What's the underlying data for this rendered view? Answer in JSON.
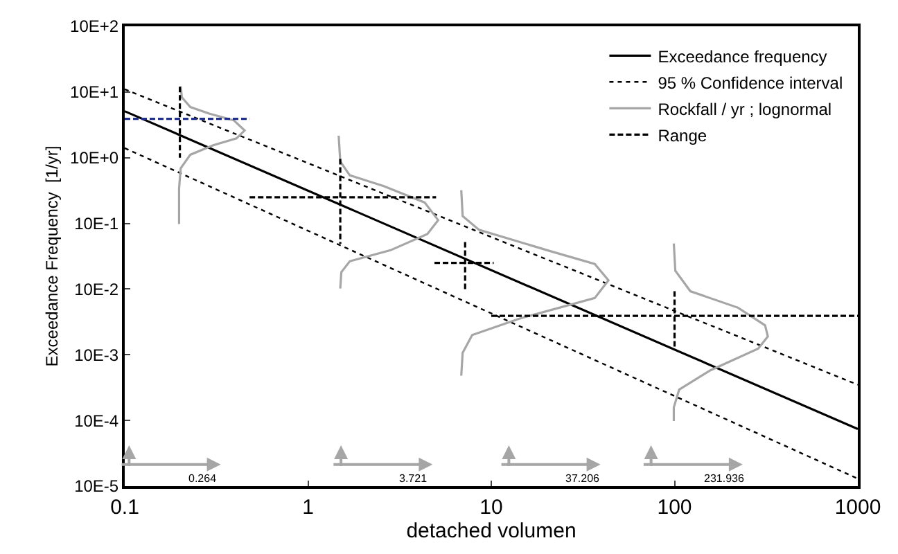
{
  "chart_data": {
    "type": "line",
    "xlabel": "detached volumen",
    "ylabel": "Exceedance Frequency  [1/yr]",
    "log": "xy",
    "xlim": [
      0.1,
      1000
    ],
    "ylim": [
      0.0001,
      1000
    ],
    "xticks": [
      0.1,
      1,
      10,
      100,
      1000
    ],
    "yticks": [
      {
        "value": 0.0001,
        "label": "10E-5"
      },
      {
        "value": 0.001,
        "label": "10E-4"
      },
      {
        "value": 0.01,
        "label": "10E-3"
      },
      {
        "value": 0.1,
        "label": "10E-2"
      },
      {
        "value": 1,
        "label": "10E-1"
      },
      {
        "value": 10,
        "label": "10E+0"
      },
      {
        "value": 100,
        "label": "10E+1"
      },
      {
        "value": 1000,
        "label": "10E+2"
      }
    ],
    "grid": false,
    "legend": "top right",
    "marker": "none",
    "series": [
      {
        "name": "Exceedance frequency",
        "color": "#000000",
        "line_style": "solid",
        "x": [
          0.1,
          1000
        ],
        "values": [
          51,
          0.00074
        ]
      },
      {
        "name": "95 % Confidence interval",
        "color": "#000000",
        "line_style": "dotted",
        "x": [
          0.1,
          1000
        ],
        "values": [
          110,
          0.0035
        ]
      },
      {
        "color": "#000000",
        "line_style": "dotted",
        "x": [
          0.1,
          1000
        ],
        "values": [
          14,
          0.00013
        ]
      },
      {
        "name": "Rockfall / yr ; lognormal",
        "color": "#a6a6a6",
        "line_style": "solid",
        "x": [
          0.202,
          0.205,
          0.228,
          0.289,
          0.394,
          0.451,
          0.407,
          0.304,
          0.228,
          0.202,
          0.198,
          0.198
        ],
        "values": [
          122,
          83,
          59,
          47,
          37,
          26,
          19.7,
          15.5,
          11.1,
          6.9,
          3.4,
          0.98
        ]
      },
      {
        "color": "#a6a6a6",
        "line_style": "solid",
        "x": [
          1.47,
          1.5,
          1.69,
          2.59,
          4.33,
          5.13,
          4.48,
          2.82,
          1.69,
          1.52,
          1.5
        ],
        "values": [
          21.7,
          8.75,
          5.4,
          3.7,
          2.08,
          1.12,
          0.69,
          0.39,
          0.265,
          0.181,
          0.102
        ]
      },
      {
        "color": "#a6a6a6",
        "line_style": "solid",
        "x": [
          6.86,
          6.98,
          8.57,
          20.2,
          36.7,
          43.6,
          36.7,
          14.3,
          7.87,
          6.98,
          6.86
        ],
        "values": [
          3.2,
          1.29,
          0.798,
          0.39,
          0.241,
          0.136,
          0.073,
          0.0356,
          0.02,
          0.0107,
          0.0048
        ]
      },
      {
        "color": "#a6a6a6",
        "line_style": "solid",
        "x": [
          99.1,
          101,
          122,
          222,
          312,
          323,
          286,
          157,
          106,
          99.1,
          99.1
        ],
        "values": [
          0.494,
          0.19,
          0.0927,
          0.052,
          0.028,
          0.019,
          0.0124,
          0.0058,
          0.00295,
          0.00158,
          0.000977
        ]
      },
      {
        "name": "Range",
        "color": "#000000",
        "line_style": "dashed",
        "x": [
          0.2,
          0.2
        ],
        "values": [
          120,
          10
        ]
      },
      {
        "color": "#000000",
        "line_style": "dashed",
        "x": [
          1.5,
          1.5
        ],
        "values": [
          9.6,
          0.49
        ]
      },
      {
        "color": "#000000",
        "line_style": "dashed",
        "x": [
          0.48,
          5.0
        ],
        "values": [
          2.5,
          2.5
        ]
      },
      {
        "color": "#000000",
        "line_style": "dashed",
        "x": [
          7.2,
          7.2
        ],
        "values": [
          0.52,
          0.1
        ]
      },
      {
        "color": "#000000",
        "line_style": "dashed",
        "x": [
          4.9,
          10.3
        ],
        "values": [
          0.25,
          0.25
        ]
      },
      {
        "color": "#000000",
        "line_style": "dashed",
        "x": [
          100,
          100
        ],
        "values": [
          0.093,
          0.0117
        ]
      },
      {
        "color": "#000000",
        "line_style": "dashed",
        "x": [
          10,
          1000
        ],
        "values": [
          0.039,
          0.039
        ]
      },
      {
        "color": "#1f2f8a",
        "line_style": "dashed",
        "x": [
          0.1,
          0.48
        ],
        "values": [
          39,
          39
        ]
      }
    ],
    "annotations": [
      "0.264",
      "3.721",
      "37.206",
      "231.936"
    ]
  }
}
